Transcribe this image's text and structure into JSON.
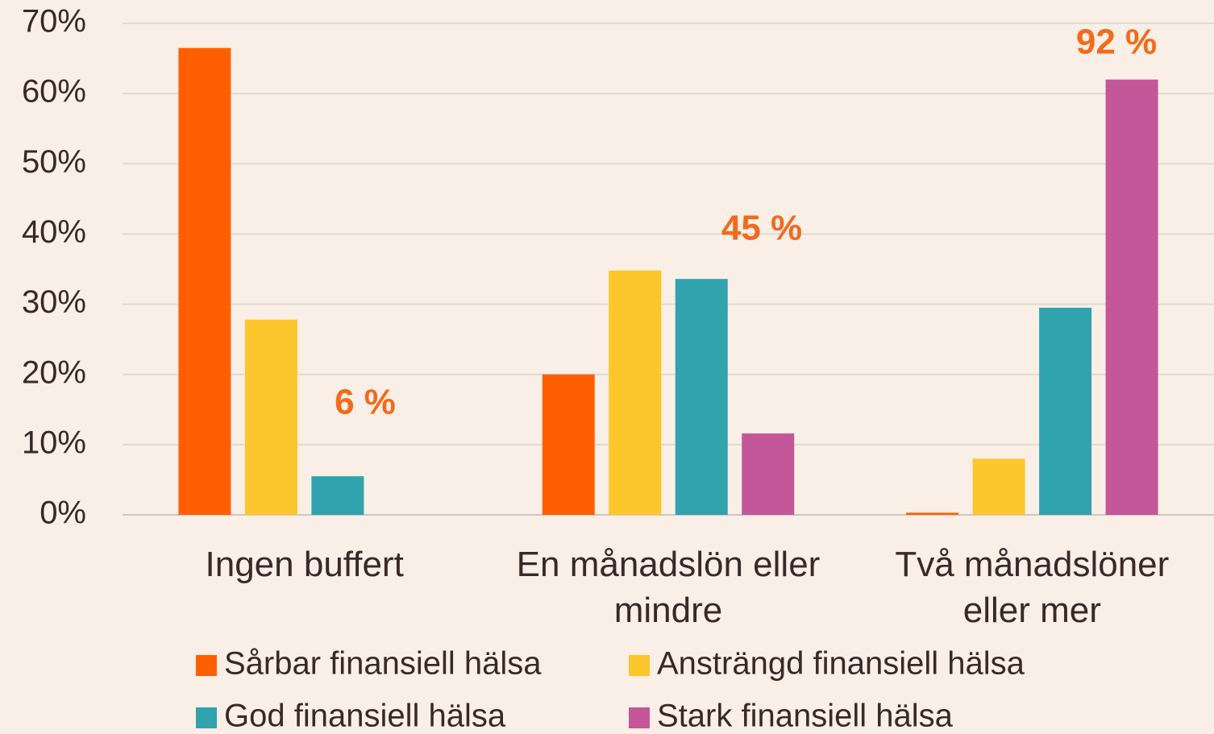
{
  "chart_data": {
    "type": "bar",
    "categories": [
      "Ingen buffert",
      "En månadslön eller mindre",
      "Två månadslöner eller mer"
    ],
    "series": [
      {
        "name": "Sårbar finansiell hälsa",
        "color": "#ff5f00",
        "values": [
          66.5,
          20,
          0.3
        ]
      },
      {
        "name": "Ansträngd finansiell hälsa",
        "color": "#fcc72c",
        "values": [
          27.8,
          34.8,
          8
        ]
      },
      {
        "name": "God finansiell hälsa",
        "color": "#30a3af",
        "values": [
          5.5,
          33.6,
          29.5
        ]
      },
      {
        "name": "Stark finansiell hälsa",
        "color": "#c4569a",
        "values": [
          null,
          11.6,
          62
        ]
      }
    ],
    "annotations": [
      "6 %",
      "45 %",
      "92 %"
    ],
    "annotation_color": "#f26a1b",
    "ylim": [
      0,
      70
    ],
    "yticks": [
      {
        "value": 0,
        "label": "0%"
      },
      {
        "value": 10,
        "label": "10%"
      },
      {
        "value": 20,
        "label": "20%"
      },
      {
        "value": 30,
        "label": "30%"
      },
      {
        "value": 40,
        "label": "40%"
      },
      {
        "value": 50,
        "label": "50%"
      },
      {
        "value": 60,
        "label": "60%"
      },
      {
        "value": 70,
        "label": "70%"
      }
    ],
    "grid": true
  }
}
